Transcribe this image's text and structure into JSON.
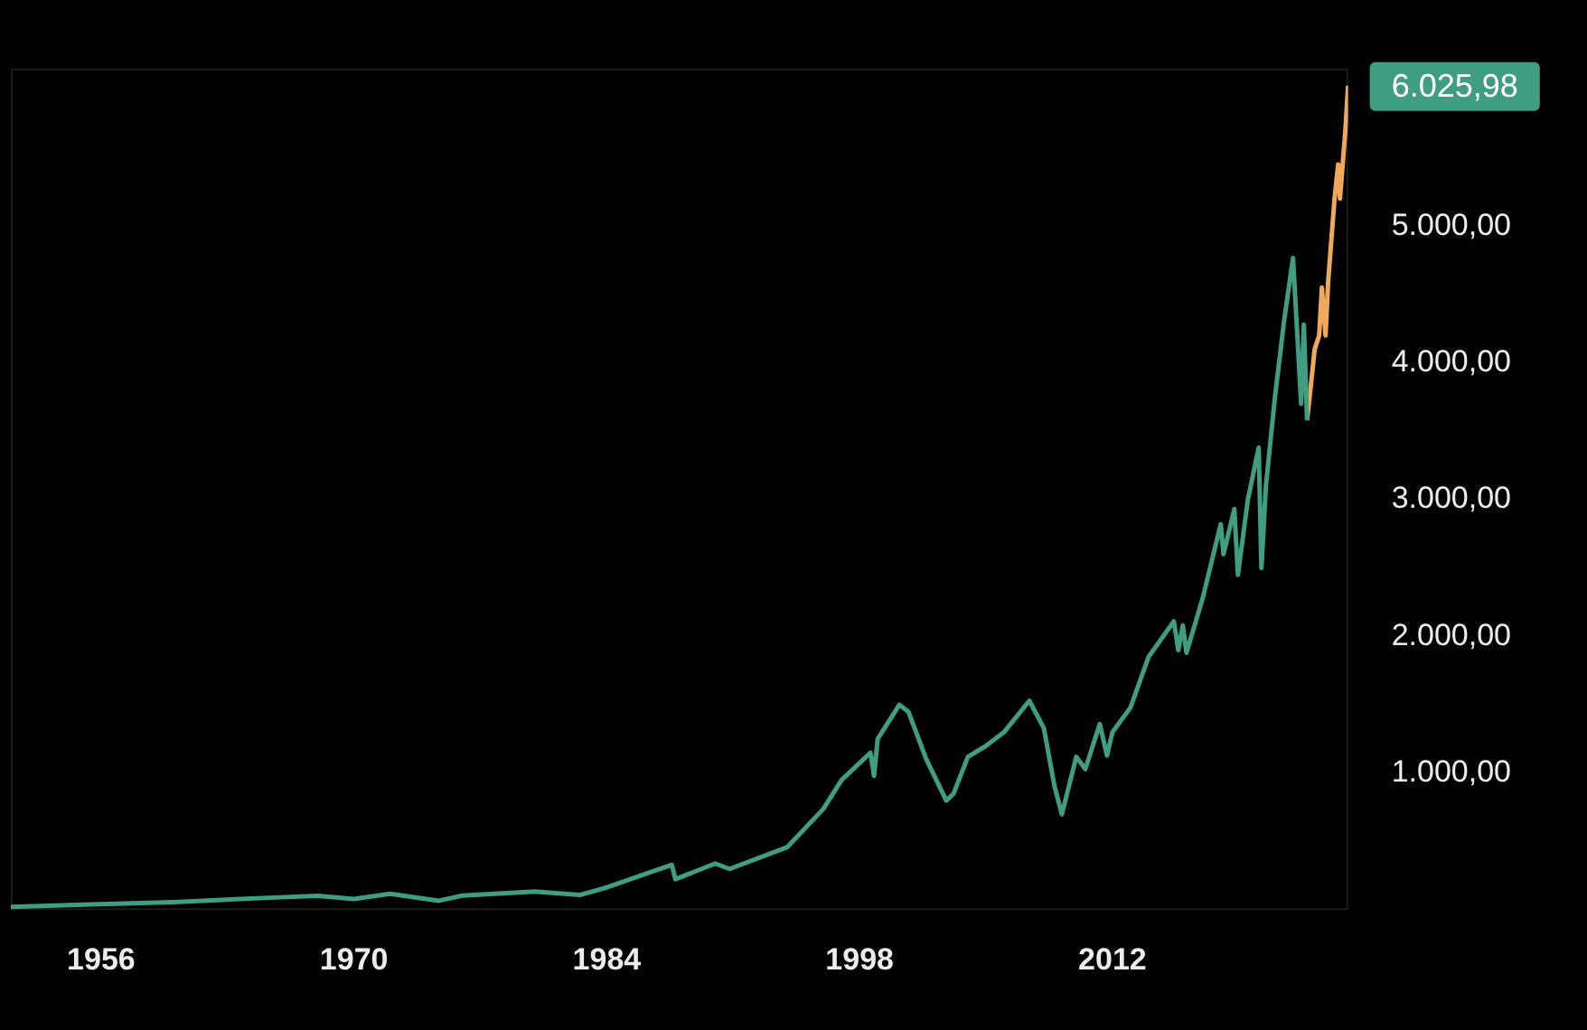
{
  "chart_data": {
    "type": "line",
    "marker": "none",
    "legend": false,
    "xlim": [
      1951,
      2025.05
    ],
    "xticks": [
      1956,
      1970,
      1984,
      1998,
      2012
    ],
    "ylim": [
      0,
      6150
    ],
    "yticks": [
      {
        "value": 1000,
        "label": "1.000,00"
      },
      {
        "value": 2000,
        "label": "2.000,00"
      },
      {
        "value": 3000,
        "label": "3.000,00"
      },
      {
        "value": 4000,
        "label": "4.000,00"
      },
      {
        "value": 5000,
        "label": "5.000,00"
      }
    ],
    "series": [
      {
        "color": "#3f9e82",
        "x": [
          1951,
          1955,
          1960,
          1965,
          1968,
          1970,
          1972,
          1974.7,
          1976,
          1980,
          1982.5,
          1984,
          1987.6,
          1987.8,
          1990,
          1990.8,
          1994,
          1996,
          1997,
          1998.6,
          1998.8,
          1999,
          2000.2,
          2000.7,
          2001.7,
          2002.8,
          2003.2,
          2004,
          2005,
          2006,
          2007.4,
          2008.2,
          2008.8,
          2009.2,
          2010,
          2010.5,
          2011.3,
          2011.7,
          2012,
          2013,
          2014,
          2015.4,
          2015.65,
          2015.9,
          2016.1,
          2017,
          2018,
          2018.15,
          2018.75,
          2018.95,
          2019.5,
          2020.1,
          2020.25,
          2020.5,
          2021,
          2021.5,
          2022.0,
          2022.45,
          2022.6,
          2022.78
        ],
        "values": [
          22,
          40,
          58,
          88,
          104,
          80,
          118,
          68,
          105,
          135,
          110,
          165,
          330,
          225,
          340,
          300,
          460,
          740,
          950,
          1150,
          980,
          1250,
          1500,
          1450,
          1100,
          800,
          850,
          1120,
          1200,
          1300,
          1530,
          1330,
          900,
          700,
          1120,
          1030,
          1360,
          1130,
          1300,
          1480,
          1850,
          2110,
          1900,
          2080,
          1880,
          2280,
          2820,
          2600,
          2930,
          2450,
          3000,
          3380,
          2500,
          3100,
          3750,
          4300,
          4766,
          3700,
          4280,
          3580
        ]
      },
      {
        "color": "#f0a95a",
        "x": [
          2022.78,
          2023.0,
          2023.2,
          2023.45,
          2023.6,
          2023.8,
          2023.95,
          2024.3,
          2024.5,
          2024.6,
          2024.9,
          2025.05
        ],
        "values": [
          3580,
          3850,
          4100,
          4200,
          4550,
          4200,
          4600,
          5200,
          5450,
          5200,
          5700,
          6025.98
        ]
      }
    ],
    "annotations": [
      {
        "text": "6.025,98",
        "x": 2025.05,
        "y": 6025.98
      }
    ]
  }
}
